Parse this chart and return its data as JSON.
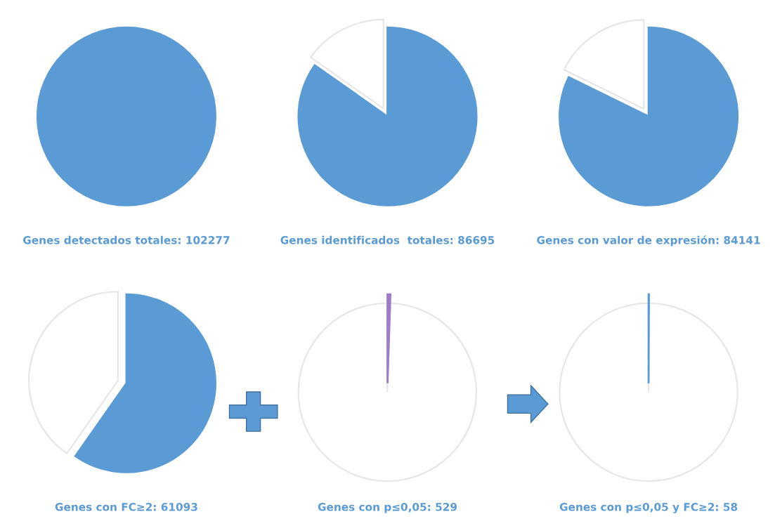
{
  "chart_data": [
    {
      "type": "pie",
      "title": "Genes detectados totales: 102277",
      "categories": [
        null
      ],
      "values": [
        100
      ],
      "colors": [
        "#5b9bd5"
      ]
    },
    {
      "type": "pie",
      "title": "Genes identificados  totales: 86695",
      "categories": [
        null,
        null
      ],
      "values": [
        84.77,
        15.23
      ],
      "colors": [
        "#5b9bd5",
        "#ffffff"
      ]
    },
    {
      "type": "pie",
      "title": "Genes con valor de expresión: 84141",
      "categories": [
        null,
        null
      ],
      "values": [
        82.27,
        17.73
      ],
      "colors": [
        "#5b9bd5",
        "#ffffff"
      ]
    },
    {
      "type": "pie",
      "title": "Genes con FC≥2: 61093",
      "categories": [
        null,
        null
      ],
      "values": [
        59.73,
        40.27
      ],
      "colors": [
        "#5b9bd5",
        "#ffffff"
      ]
    },
    {
      "type": "pie",
      "title": "Genes con p≤0,05: 529",
      "categories": [
        null,
        null
      ],
      "values": [
        0.52,
        99.48
      ],
      "colors": [
        "#9e7cc8",
        "#ffffff"
      ]
    },
    {
      "type": "pie",
      "title": "Genes con p≤0,05 y FC≥2: 58",
      "categories": [
        null,
        null
      ],
      "values": [
        0.06,
        99.94
      ],
      "colors": [
        "#5b9bd5",
        "#ffffff"
      ]
    }
  ]
}
